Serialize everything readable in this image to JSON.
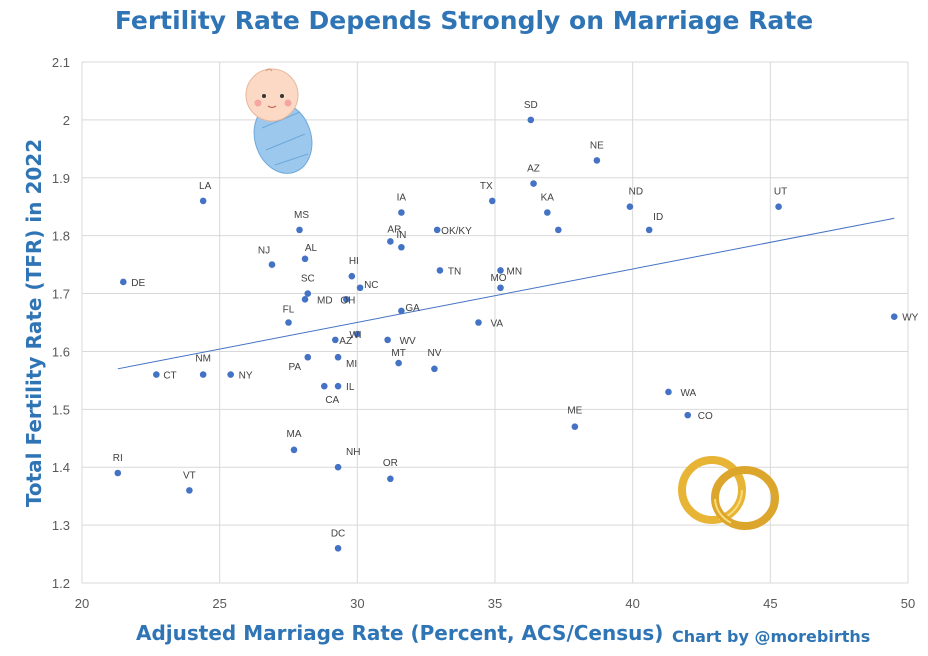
{
  "chart_data": {
    "type": "scatter",
    "title": "Fertility Rate Depends Strongly on Marriage Rate",
    "xlabel": "Adjusted Marriage Rate (Percent, ACS/Census)",
    "ylabel": "Total Fertility Rate (TFR) in 2022",
    "credit": "Chart by @morebirths",
    "xlim": [
      20,
      50
    ],
    "ylim": [
      1.2,
      2.1
    ],
    "x_ticks": [
      "20",
      "25",
      "30",
      "35",
      "40",
      "45",
      "50"
    ],
    "y_ticks": [
      "1.2",
      "1.3",
      "1.4",
      "1.5",
      "1.6",
      "1.7",
      "1.8",
      "1.9",
      "2",
      "2.1"
    ],
    "grid": true,
    "trendline": {
      "x": [
        21.3,
        49.5
      ],
      "y": [
        1.57,
        1.83
      ]
    },
    "marker_color": "#4472c4",
    "title_color": "#2f75b5",
    "points": [
      {
        "label": "SD",
        "x": 36.3,
        "y": 2.0
      },
      {
        "label": "NE",
        "x": 38.7,
        "y": 1.93
      },
      {
        "label": "AZ",
        "x": 36.4,
        "y": 1.89
      },
      {
        "label": "LA",
        "x": 24.4,
        "y": 1.86
      },
      {
        "label": "TX",
        "x": 34.9,
        "y": 1.86
      },
      {
        "label": "ND",
        "x": 39.9,
        "y": 1.85
      },
      {
        "label": "UT",
        "x": 45.3,
        "y": 1.85
      },
      {
        "label": "IA",
        "x": 31.6,
        "y": 1.84
      },
      {
        "label": "KA",
        "x": 36.9,
        "y": 1.84
      },
      {
        "label": "MS",
        "x": 27.9,
        "y": 1.81
      },
      {
        "label": "",
        "x": 37.3,
        "y": 1.81
      },
      {
        "label": "OK/KY",
        "x": 32.9,
        "y": 1.81
      },
      {
        "label": "ID",
        "x": 40.6,
        "y": 1.81
      },
      {
        "label": "AR",
        "x": 31.2,
        "y": 1.79
      },
      {
        "label": "IN",
        "x": 31.6,
        "y": 1.78
      },
      {
        "label": "AL",
        "x": 28.1,
        "y": 1.76
      },
      {
        "label": "NJ",
        "x": 26.9,
        "y": 1.75
      },
      {
        "label": "TN",
        "x": 33.0,
        "y": 1.74
      },
      {
        "label": "MN",
        "x": 35.2,
        "y": 1.74
      },
      {
        "label": "HI",
        "x": 29.8,
        "y": 1.73
      },
      {
        "label": "DE",
        "x": 21.5,
        "y": 1.72
      },
      {
        "label": "MO",
        "x": 35.2,
        "y": 1.71
      },
      {
        "label": "NC",
        "x": 30.1,
        "y": 1.71
      },
      {
        "label": "SC",
        "x": 28.2,
        "y": 1.7
      },
      {
        "label": "MD",
        "x": 28.1,
        "y": 1.69
      },
      {
        "label": "OH",
        "x": 29.6,
        "y": 1.69
      },
      {
        "label": "GA",
        "x": 31.6,
        "y": 1.67
      },
      {
        "label": "WY",
        "x": 49.5,
        "y": 1.66
      },
      {
        "label": "FL",
        "x": 27.5,
        "y": 1.65
      },
      {
        "label": "VA",
        "x": 34.4,
        "y": 1.65
      },
      {
        "label": "WI",
        "x": 30.0,
        "y": 1.63
      },
      {
        "label": "AZ",
        "x": 29.2,
        "y": 1.62
      },
      {
        "label": "WV",
        "x": 31.1,
        "y": 1.62
      },
      {
        "label": "PA",
        "x": 28.2,
        "y": 1.59
      },
      {
        "label": "MI",
        "x": 29.3,
        "y": 1.59
      },
      {
        "label": "MT",
        "x": 31.5,
        "y": 1.58
      },
      {
        "label": "NV",
        "x": 32.8,
        "y": 1.57
      },
      {
        "label": "NM",
        "x": 24.4,
        "y": 1.56
      },
      {
        "label": "NY",
        "x": 25.4,
        "y": 1.56
      },
      {
        "label": "CT",
        "x": 22.7,
        "y": 1.56
      },
      {
        "label": "CA",
        "x": 28.8,
        "y": 1.54
      },
      {
        "label": "IL",
        "x": 29.3,
        "y": 1.54
      },
      {
        "label": "WA",
        "x": 41.3,
        "y": 1.53
      },
      {
        "label": "CO",
        "x": 42.0,
        "y": 1.49
      },
      {
        "label": "ME",
        "x": 37.9,
        "y": 1.47
      },
      {
        "label": "MA",
        "x": 27.7,
        "y": 1.43
      },
      {
        "label": "NH",
        "x": 29.3,
        "y": 1.4
      },
      {
        "label": "RI",
        "x": 21.3,
        "y": 1.39
      },
      {
        "label": "OR",
        "x": 31.2,
        "y": 1.38
      },
      {
        "label": "VT",
        "x": 23.9,
        "y": 1.36
      },
      {
        "label": "DC",
        "x": 29.3,
        "y": 1.26
      }
    ]
  }
}
